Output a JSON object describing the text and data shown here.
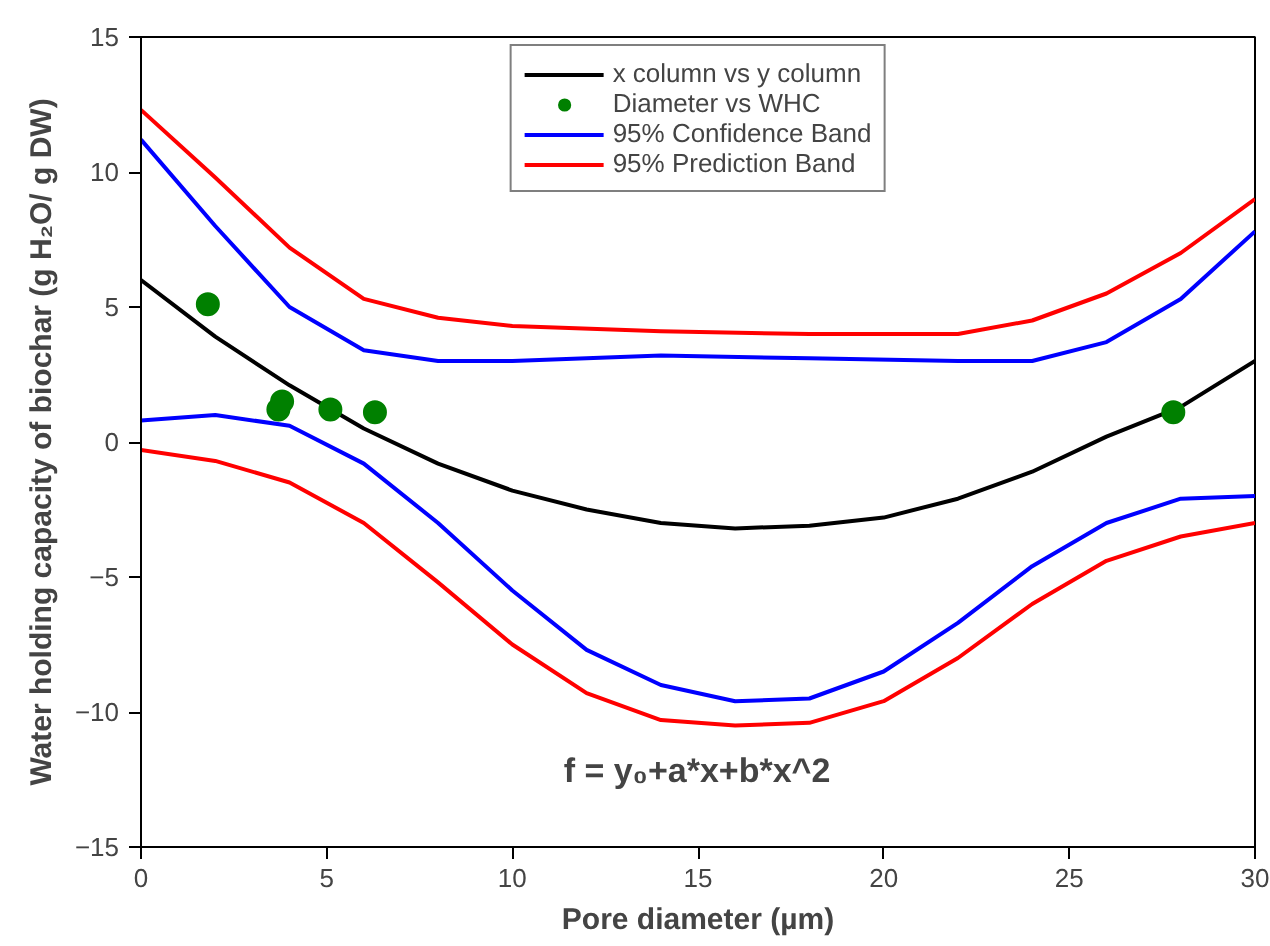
{
  "chart_data": {
    "type": "line",
    "xlabel": "Pore diameter (µm)",
    "ylabel": "Water holding capacity of biochar (g H₂O/ g DW)",
    "xlim": [
      0,
      30
    ],
    "ylim": [
      -15,
      15
    ],
    "xticks": [
      0,
      5,
      10,
      15,
      20,
      25,
      30
    ],
    "yticks": [
      -15,
      -10,
      -5,
      0,
      5,
      10,
      15
    ],
    "grid": false,
    "legend": "top",
    "annotations": [
      "f = y₀+a*x+b*x^2"
    ],
    "series": [
      {
        "name": "x column vs y column",
        "color": "#000000",
        "x": [
          0,
          2,
          4,
          6,
          8,
          10,
          12,
          14,
          16,
          18,
          20,
          22,
          24,
          26,
          28,
          30
        ],
        "values": [
          6.0,
          3.9,
          2.1,
          0.5,
          -0.8,
          -1.8,
          -2.5,
          -3.0,
          -3.2,
          -3.1,
          -2.8,
          -2.1,
          -1.1,
          0.2,
          1.3,
          3.0
        ]
      },
      {
        "name": "Diameter vs WHC",
        "type": "scatter",
        "marker": "circle",
        "color": "#008000",
        "x": [
          1.8,
          3.7,
          3.8,
          5.1,
          6.3,
          27.8
        ],
        "values": [
          5.1,
          1.2,
          1.5,
          1.2,
          1.1,
          1.1
        ]
      },
      {
        "name": "95% Confidence Band",
        "color": "#0000ff",
        "x": [
          0,
          2,
          4,
          6,
          8,
          10,
          14,
          18,
          22,
          24,
          26,
          28,
          30
        ],
        "values": [
          11.2,
          8.0,
          5.0,
          3.4,
          3.0,
          3.0,
          3.2,
          3.1,
          3.0,
          3.0,
          3.7,
          5.3,
          7.8
        ]
      },
      {
        "name": null,
        "color": "#0000ff",
        "x": [
          0,
          2,
          4,
          6,
          8,
          10,
          12,
          14,
          16,
          18,
          20,
          22,
          24,
          26,
          28,
          30
        ],
        "values": [
          0.8,
          1.0,
          0.6,
          -0.8,
          -3.0,
          -5.5,
          -7.7,
          -9.0,
          -9.6,
          -9.5,
          -8.5,
          -6.7,
          -4.6,
          -3.0,
          -2.1,
          -2.0
        ]
      },
      {
        "name": "95% Prediction Band",
        "color": "#ff0000",
        "x": [
          0,
          2,
          4,
          6,
          8,
          10,
          14,
          18,
          22,
          24,
          26,
          28,
          30
        ],
        "values": [
          12.3,
          9.8,
          7.2,
          5.3,
          4.6,
          4.3,
          4.1,
          4.0,
          4.0,
          4.5,
          5.5,
          7.0,
          9.0
        ]
      },
      {
        "name": null,
        "color": "#ff0000",
        "x": [
          0,
          2,
          4,
          6,
          8,
          10,
          12,
          14,
          16,
          18,
          20,
          22,
          24,
          26,
          28,
          30
        ],
        "values": [
          -0.3,
          -0.7,
          -1.5,
          -3.0,
          -5.2,
          -7.5,
          -9.3,
          -10.3,
          -10.5,
          -10.4,
          -9.6,
          -8.0,
          -6.0,
          -4.4,
          -3.5,
          -3.0
        ]
      }
    ]
  }
}
